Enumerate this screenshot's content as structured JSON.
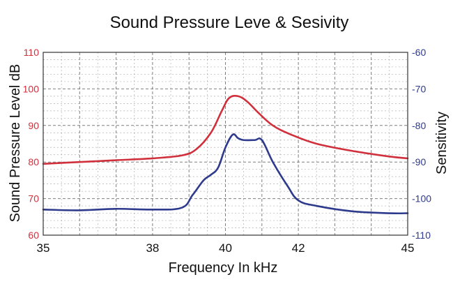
{
  "chart_data": {
    "type": "line",
    "title": "Sound Pressure Leve & Sesivity",
    "xlabel": "Frequency In kHz",
    "ylabel_left": "Sound Pressure Level dB",
    "ylabel_right": "Sensitivity",
    "x_ticks": [
      35,
      38,
      40,
      42,
      45
    ],
    "y_left_ticks": [
      60,
      70,
      80,
      90,
      100,
      110
    ],
    "y_right_ticks": [
      -110,
      -100,
      -90,
      -80,
      -70,
      -60
    ],
    "ylim_left": [
      60,
      110
    ],
    "ylim_right": [
      -110,
      -60
    ],
    "grid": true,
    "colors": {
      "spl": "#d0303c",
      "sensitivity": "#2e3a8c",
      "grid": "#555555",
      "frame": "#333333"
    },
    "series": [
      {
        "axis": "left",
        "color": "#d0303c",
        "x": [
          35,
          36,
          37,
          38,
          38.8,
          39.2,
          39.6,
          39.9,
          40.1,
          40.35,
          40.6,
          40.9,
          41.3,
          41.8,
          42.5,
          43.5,
          44.5,
          45
        ],
        "y": [
          79.5,
          80.0,
          80.5,
          81.0,
          81.8,
          83.5,
          88.0,
          94.0,
          97.5,
          98.0,
          96.5,
          93.5,
          90.0,
          87.5,
          85.0,
          83.0,
          81.5,
          81.0
        ]
      },
      {
        "axis": "right",
        "color": "#2e3a8c",
        "x": [
          35,
          36,
          37,
          38,
          38.8,
          39.1,
          39.4,
          39.6,
          39.8,
          40.0,
          40.2,
          40.35,
          40.5,
          40.8,
          41.0,
          41.3,
          41.7,
          42.0,
          42.5,
          43.5,
          44.5,
          45
        ],
        "y": [
          -103.0,
          -103.2,
          -102.8,
          -103.0,
          -102.5,
          -99.0,
          -95.0,
          -93.5,
          -91.5,
          -86.0,
          -82.5,
          -83.5,
          -84.0,
          -84.0,
          -84.0,
          -90.0,
          -96.5,
          -100.5,
          -102.0,
          -103.5,
          -104.0,
          -104.0
        ]
      }
    ]
  }
}
